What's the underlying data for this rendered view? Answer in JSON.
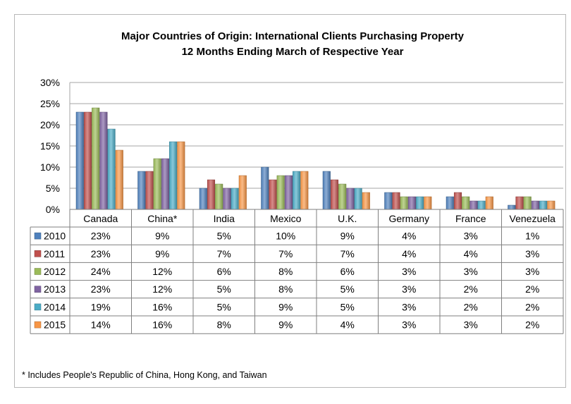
{
  "chart_data": {
    "type": "bar",
    "title": "Major Countries of Origin: International Clients Purchasing Property",
    "subtitle": "12 Months Ending March of Respective Year",
    "categories": [
      "Canada",
      "China*",
      "India",
      "Mexico",
      "U.K.",
      "Germany",
      "France",
      "Venezuela"
    ],
    "y_tick_labels": [
      "0%",
      "5%",
      "10%",
      "15%",
      "20%",
      "25%",
      "30%"
    ],
    "ylim": [
      0,
      30
    ],
    "grid": true,
    "legend": "data table below chart",
    "series": [
      {
        "name": "2010",
        "color": "#4f81bd",
        "values": [
          23,
          9,
          5,
          10,
          9,
          4,
          3,
          1
        ],
        "labels": [
          "23%",
          "9%",
          "5%",
          "10%",
          "9%",
          "4%",
          "3%",
          "1%"
        ]
      },
      {
        "name": "2011",
        "color": "#c0504d",
        "values": [
          23,
          9,
          7,
          7,
          7,
          4,
          4,
          3
        ],
        "labels": [
          "23%",
          "9%",
          "7%",
          "7%",
          "7%",
          "4%",
          "4%",
          "3%"
        ]
      },
      {
        "name": "2012",
        "color": "#9bbb59",
        "values": [
          24,
          12,
          6,
          8,
          6,
          3,
          3,
          3
        ],
        "labels": [
          "24%",
          "12%",
          "6%",
          "8%",
          "6%",
          "3%",
          "3%",
          "3%"
        ]
      },
      {
        "name": "2013",
        "color": "#8064a2",
        "values": [
          23,
          12,
          5,
          8,
          5,
          3,
          2,
          2
        ],
        "labels": [
          "23%",
          "12%",
          "5%",
          "8%",
          "5%",
          "3%",
          "2%",
          "2%"
        ]
      },
      {
        "name": "2014",
        "color": "#4bacc6",
        "values": [
          19,
          16,
          5,
          9,
          5,
          3,
          2,
          2
        ],
        "labels": [
          "19%",
          "16%",
          "5%",
          "9%",
          "5%",
          "3%",
          "2%",
          "2%"
        ]
      },
      {
        "name": "2015",
        "color": "#f79646",
        "values": [
          14,
          16,
          8,
          9,
          4,
          3,
          3,
          2
        ],
        "labels": [
          "14%",
          "16%",
          "8%",
          "9%",
          "4%",
          "3%",
          "3%",
          "2%"
        ]
      }
    ],
    "footnote": "* Includes People's Republic of China, Hong Kong, and Taiwan"
  }
}
